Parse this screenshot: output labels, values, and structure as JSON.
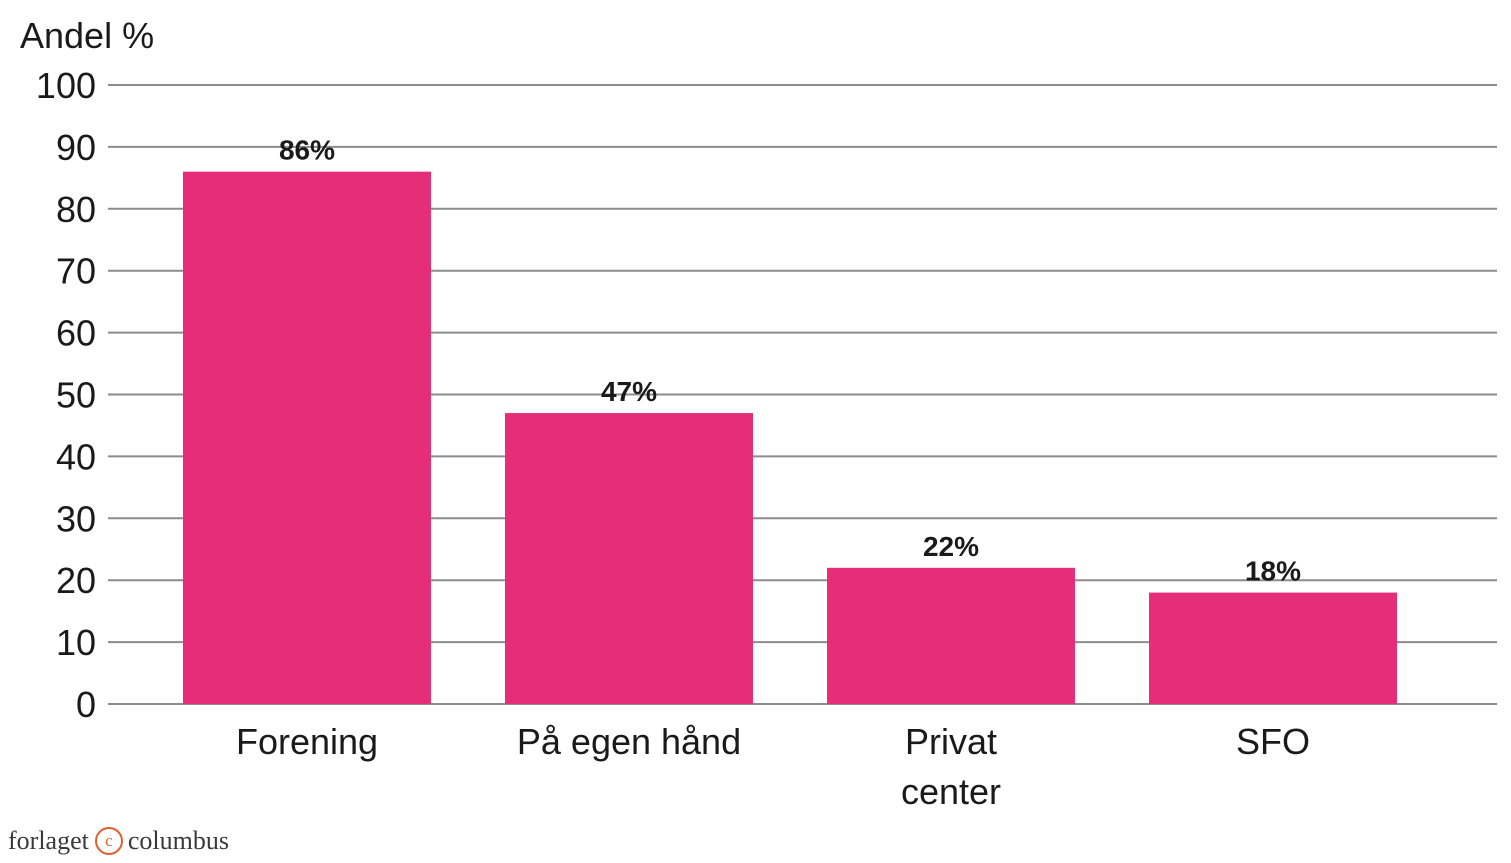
{
  "chart_data": {
    "type": "bar",
    "ylabel": "Andel %",
    "xlabel": "",
    "ylim": [
      0,
      100
    ],
    "yticks": [
      0,
      10,
      20,
      30,
      40,
      50,
      60,
      70,
      80,
      90,
      100
    ],
    "grid": true,
    "categories": [
      [
        "Forening"
      ],
      [
        "På egen hånd"
      ],
      [
        "Privat",
        "center"
      ],
      [
        "SFO"
      ]
    ],
    "values": [
      86,
      47,
      22,
      18
    ],
    "data_labels": [
      "86%",
      "47%",
      "22%",
      "18%"
    ],
    "bar_color": "#e62e78"
  },
  "publisher": {
    "left": "forlaget",
    "icon": "copyright-icon",
    "right": "columbus"
  },
  "colors": {
    "bar": "#e62e78",
    "grid": "#8c8c8c",
    "logo_accent": "#e0602a"
  }
}
